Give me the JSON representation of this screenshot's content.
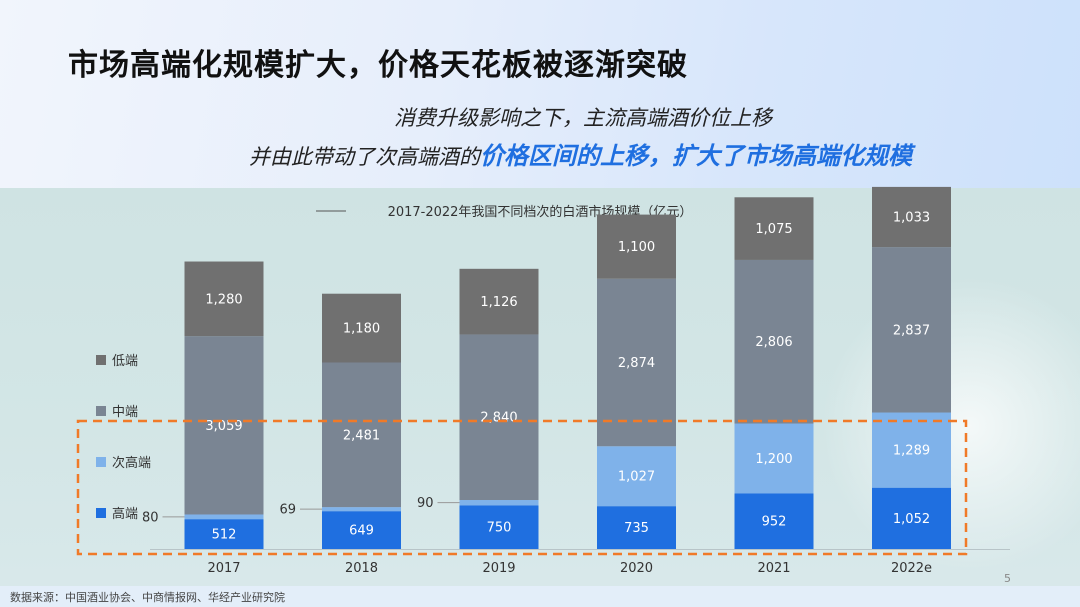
{
  "slide": {
    "title": "市场高端化规模扩大，价格天花板被逐渐突破",
    "subtitle_line1": "消费升级影响之下，主流高端酒价位上移",
    "subtitle_line2_prefix": "并由此带动了次高端酒的",
    "subtitle_line2_highlight": "价格区间的上移，扩大了市场高端化规模",
    "source": "数据来源：中国酒业协会、中商情报网、华经产业研究院",
    "page_number": "5"
  },
  "colors": {
    "high": "#1f6fe0",
    "sub_high": "#7fb2ea",
    "mid": "#7a8593",
    "low": "#707070",
    "highlight_box": "#f07a28"
  },
  "chart_data": {
    "type": "bar",
    "stacked": true,
    "title": "2017-2022年我国不同档次的白酒市场规模（亿元）",
    "categories": [
      "2017",
      "2018",
      "2019",
      "2020",
      "2021",
      "2022e"
    ],
    "series": [
      {
        "name": "高端",
        "values": [
          512,
          649,
          750,
          735,
          952,
          1052
        ],
        "labels": [
          "512",
          "649",
          "750",
          "735",
          "952",
          "1,052"
        ]
      },
      {
        "name": "次高端",
        "values": [
          80,
          69,
          90,
          1027,
          1200,
          1289
        ],
        "labels": [
          "80",
          "69",
          "90",
          "1,027",
          "1,200",
          "1,289"
        ]
      },
      {
        "name": "中端",
        "values": [
          3059,
          2481,
          2840,
          2874,
          2806,
          2837
        ],
        "labels": [
          "3,059",
          "2,481",
          "2,840",
          "2,874",
          "2,806",
          "2,837"
        ]
      },
      {
        "name": "低端",
        "values": [
          1280,
          1180,
          1126,
          1100,
          1075,
          1033
        ],
        "labels": [
          "1,280",
          "1,180",
          "1,126",
          "1,100",
          "1,075",
          "1,033"
        ]
      }
    ],
    "legend_order": [
      "低端",
      "中端",
      "次高端",
      "高端"
    ],
    "legend_position": "left",
    "grid": false
  }
}
